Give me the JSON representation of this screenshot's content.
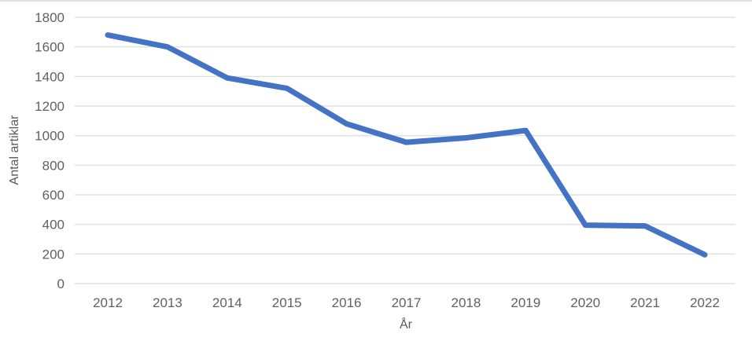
{
  "chart_data": {
    "type": "line",
    "title": "",
    "xlabel": "År",
    "ylabel": "Antal artiklar",
    "categories": [
      "2012",
      "2013",
      "2014",
      "2015",
      "2016",
      "2017",
      "2018",
      "2019",
      "2020",
      "2021",
      "2022"
    ],
    "series": [
      {
        "name": "Antal artiklar",
        "values": [
          1680,
          1600,
          1390,
          1320,
          1080,
          955,
          985,
          1035,
          395,
          390,
          195
        ],
        "color": "#4472c4"
      }
    ],
    "ylim": [
      0,
      1800
    ],
    "ytick_step": 200,
    "yticks": [
      0,
      200,
      400,
      600,
      800,
      1000,
      1200,
      1400,
      1600,
      1800
    ],
    "grid": true,
    "legend": "none"
  },
  "colors": {
    "line": "#4472c4",
    "grid": "#e0e0e0",
    "tick_text": "#616161",
    "axis_title_text": "#5b5b5b",
    "top_border": "#dedede",
    "background": "#ffffff"
  }
}
